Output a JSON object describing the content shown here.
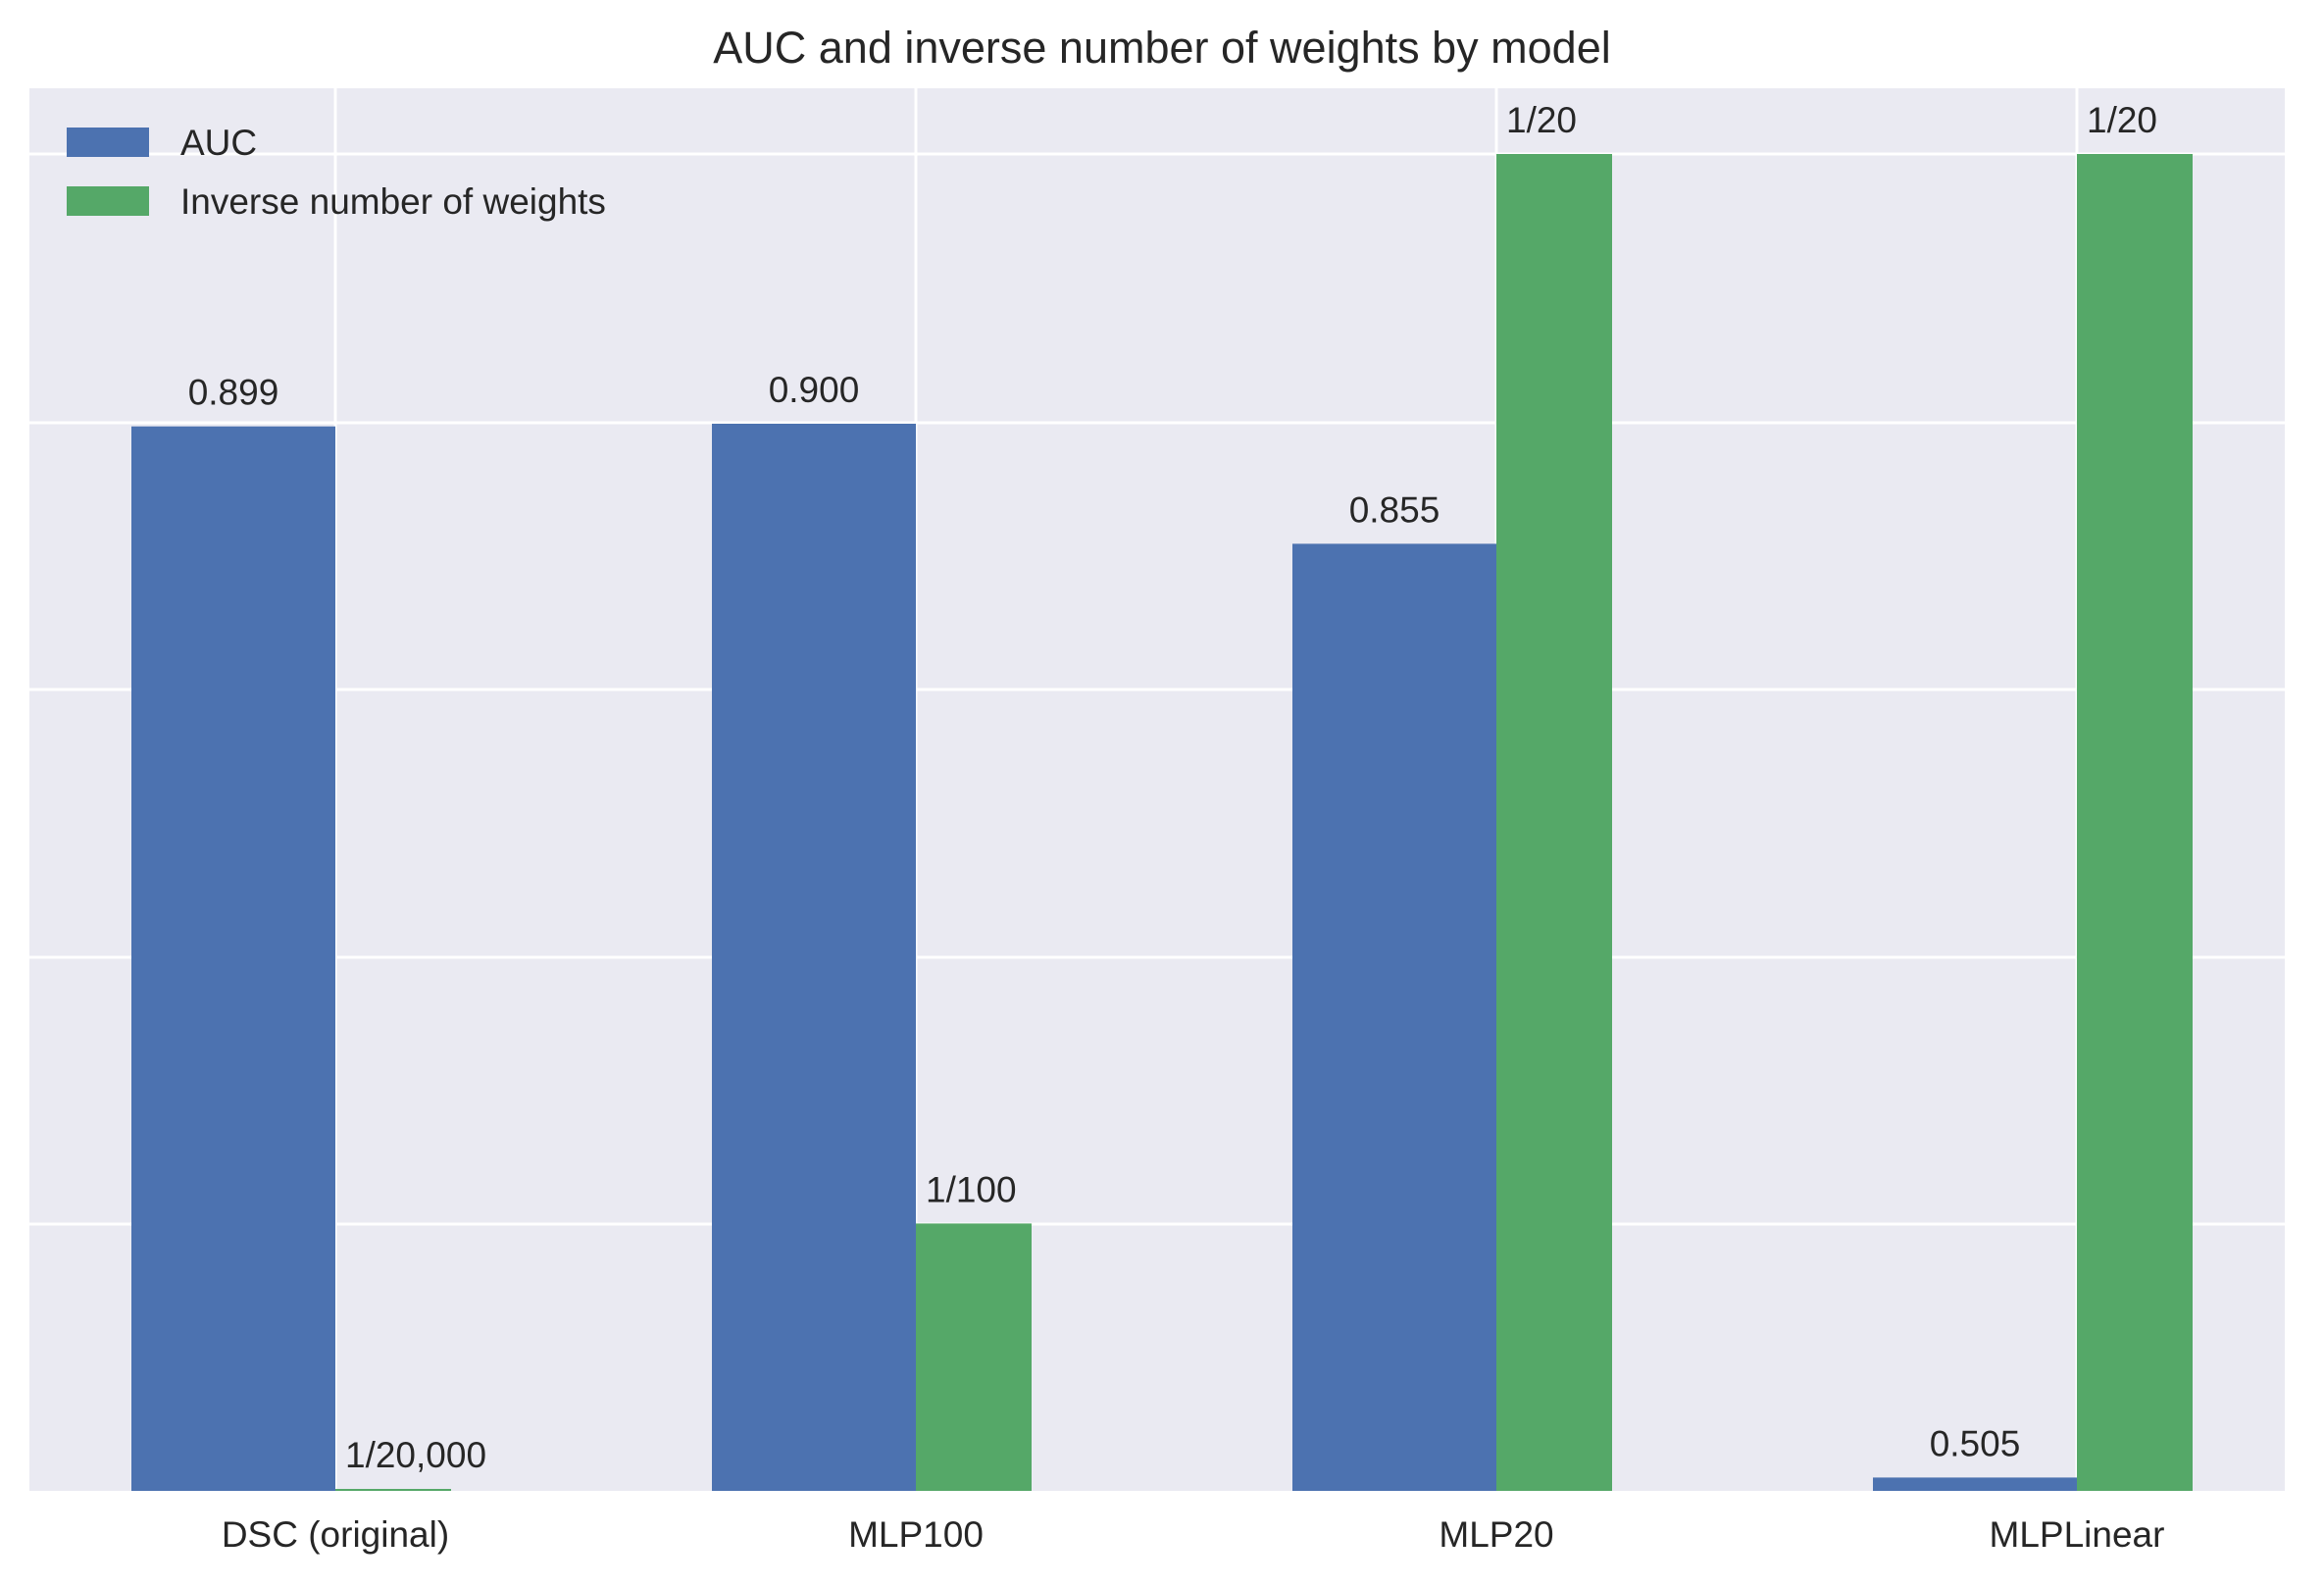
{
  "chart_data": {
    "type": "bar",
    "title": "AUC and inverse number of weights by model",
    "xlabel": "",
    "ylabel": "",
    "categories": [
      "DSC (original)",
      "MLP100",
      "MLP20",
      "MLPLinear"
    ],
    "series": [
      {
        "name": "AUC",
        "color": "#4c72b0",
        "values": [
          0.899,
          0.9,
          0.855,
          0.505
        ],
        "labels": [
          "0.899",
          "0.900",
          "0.855",
          "0.505"
        ]
      },
      {
        "name": "Inverse number of weights",
        "color": "#55a868",
        "values": [
          5e-05,
          0.01,
          0.05,
          0.05
        ],
        "labels": [
          "1/20,000",
          "1/100",
          "1/20",
          "1/20"
        ]
      }
    ],
    "axes_independent_scales": true,
    "yticks_labeled": false,
    "grid": true,
    "legend_position": "top-left",
    "style": {
      "background": "#eaeaf2",
      "grid_color": "#ffffff"
    }
  }
}
